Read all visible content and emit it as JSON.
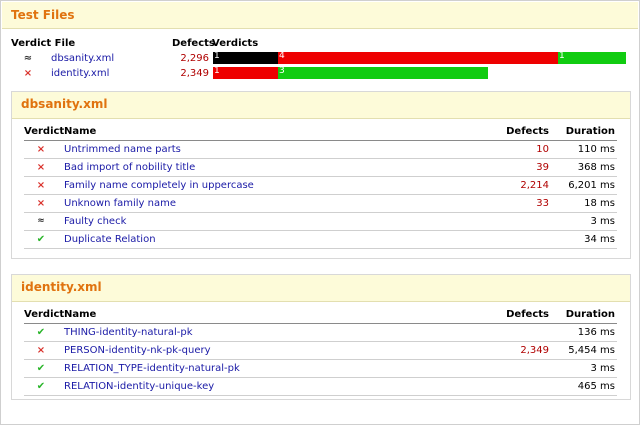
{
  "page_title": "Test Files",
  "summary": {
    "headers": {
      "verdict_file": "Verdict File",
      "defects": "Defects",
      "verdicts": "Verdicts"
    },
    "rows": [
      {
        "icon": "faulty-icon",
        "file": "dbsanity.xml",
        "defects": "2,296",
        "bar": [
          {
            "color": "#000000",
            "label": "1",
            "value": 1
          },
          {
            "color": "#ee0000",
            "label": "4",
            "value": 4
          },
          {
            "color": "#11cc11",
            "label": "1",
            "value": 1
          }
        ]
      },
      {
        "icon": "fail-x-icon",
        "file": "identity.xml",
        "defects": "2,349",
        "bar": [
          {
            "color": "#ee0000",
            "label": "1",
            "value": 1
          },
          {
            "color": "#11cc11",
            "label": "3",
            "value": 3
          }
        ]
      }
    ]
  },
  "panels": [
    {
      "title": "dbsanity.xml",
      "headers": {
        "verdict": "Verdict",
        "name": "Name",
        "defects": "Defects",
        "duration": "Duration"
      },
      "rows": [
        {
          "icon": "fail-x-icon",
          "name": "Untrimmed name parts",
          "defects": "10",
          "duration": "110 ms"
        },
        {
          "icon": "fail-x-icon",
          "name": "Bad import of nobility title",
          "defects": "39",
          "duration": "368 ms"
        },
        {
          "icon": "fail-x-icon",
          "name": "Family name completely in uppercase",
          "defects": "2,214",
          "duration": "6,201 ms"
        },
        {
          "icon": "fail-x-icon",
          "name": "Unknown family name",
          "defects": "33",
          "duration": "18 ms"
        },
        {
          "icon": "faulty-icon",
          "name": "Faulty check",
          "defects": "",
          "duration": "3 ms"
        },
        {
          "icon": "pass-check-icon",
          "name": "Duplicate Relation",
          "defects": "",
          "duration": "34 ms"
        }
      ]
    },
    {
      "title": "identity.xml",
      "headers": {
        "verdict": "Verdict",
        "name": "Name",
        "defects": "Defects",
        "duration": "Duration"
      },
      "rows": [
        {
          "icon": "pass-check-icon",
          "name": "THING-identity-natural-pk",
          "defects": "",
          "duration": "136 ms"
        },
        {
          "icon": "fail-x-icon",
          "name": "PERSON-identity-nk-pk-query",
          "defects": "2,349",
          "duration": "5,454 ms"
        },
        {
          "icon": "pass-check-icon",
          "name": "RELATION_TYPE-identity-natural-pk",
          "defects": "",
          "duration": "3 ms"
        },
        {
          "icon": "pass-check-icon",
          "name": "RELATION-identity-unique-key",
          "defects": "",
          "duration": "465 ms"
        }
      ]
    }
  ]
}
